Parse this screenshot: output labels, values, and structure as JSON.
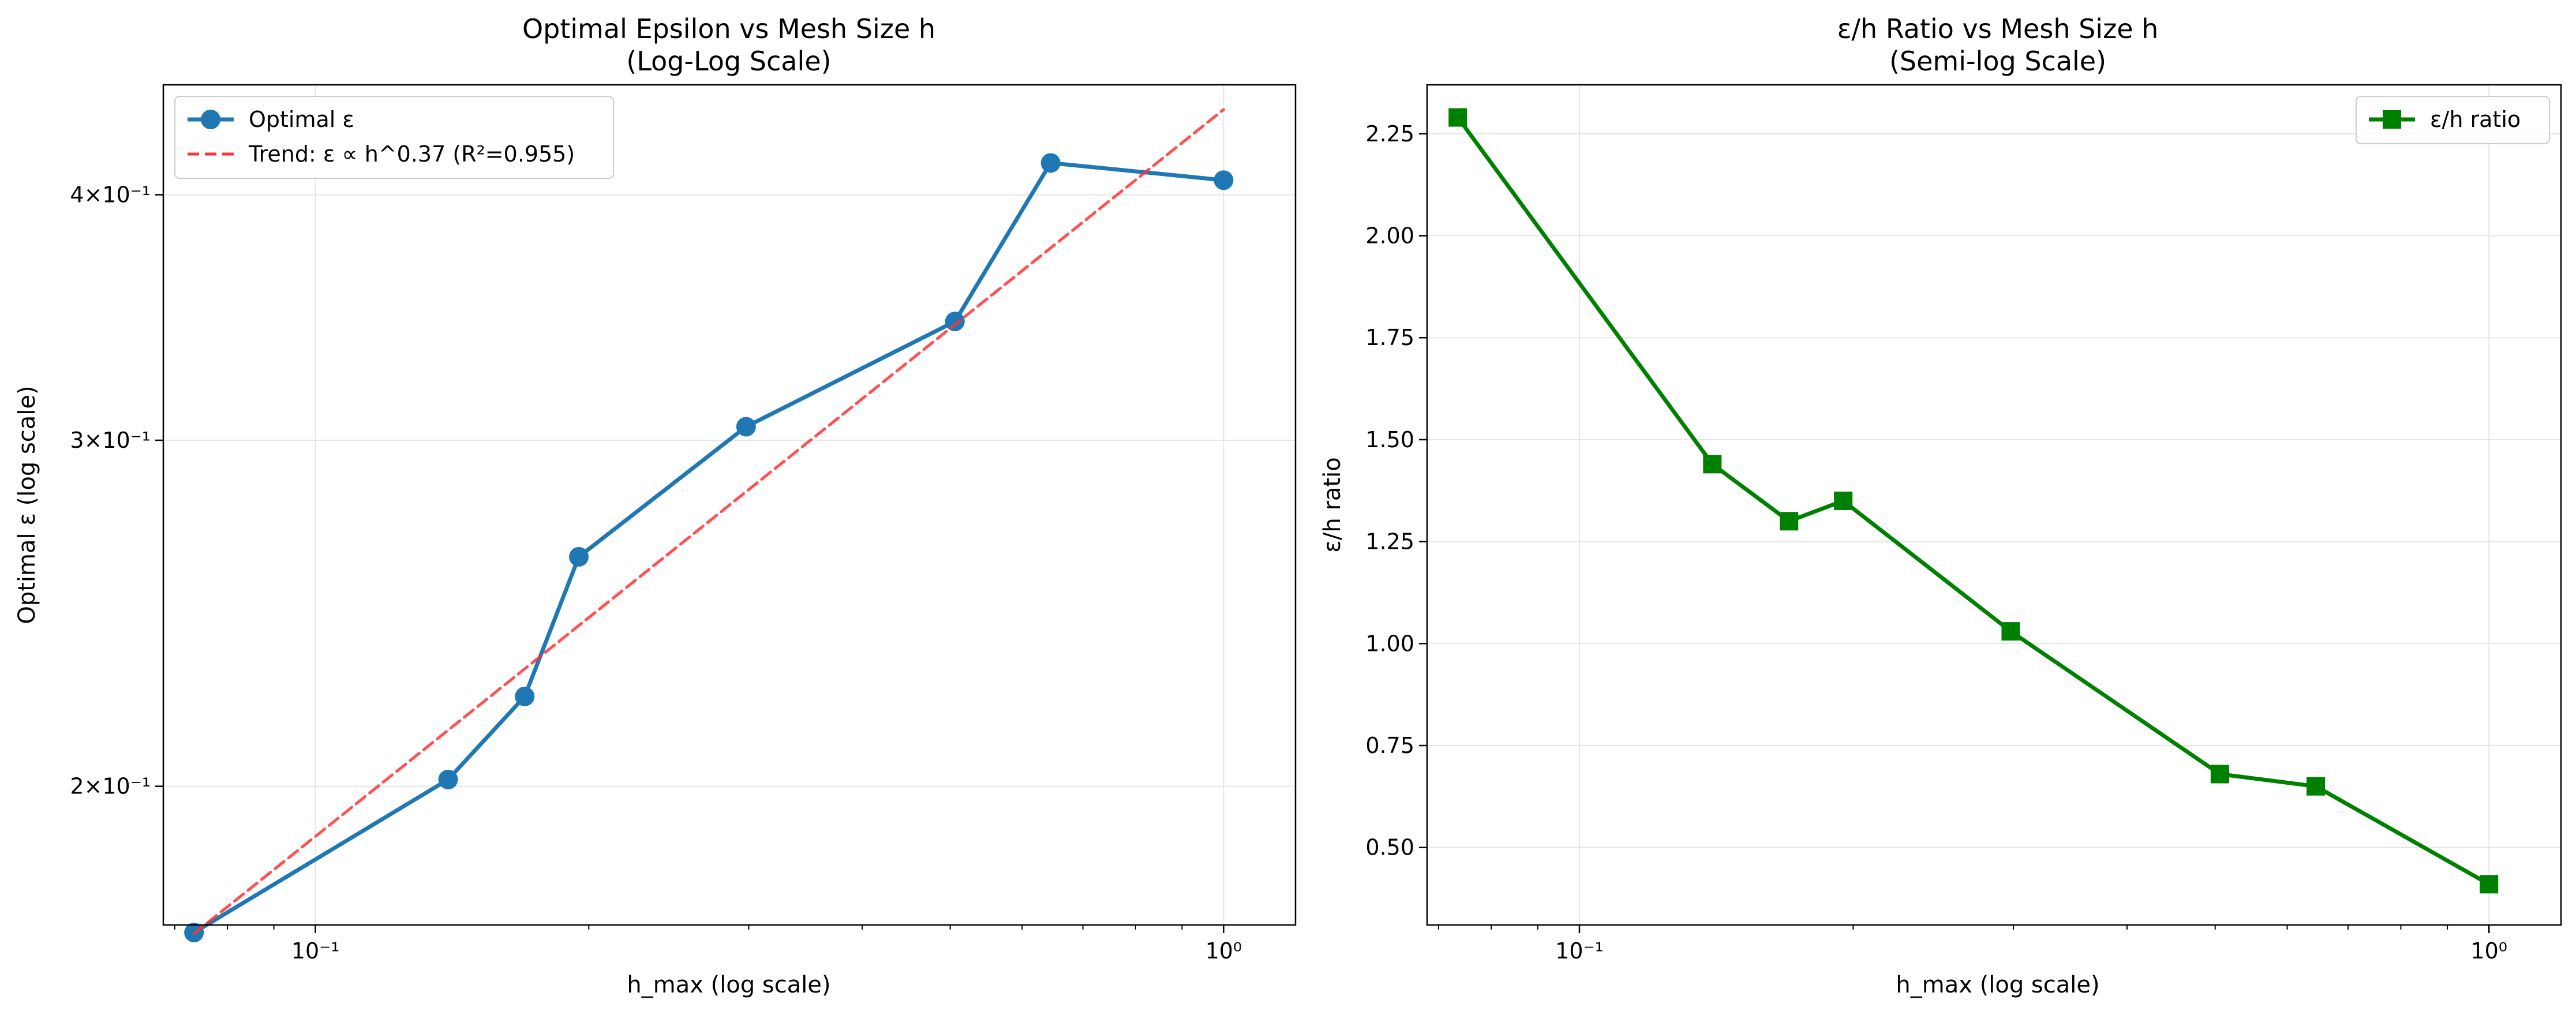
{
  "chart_data": [
    {
      "type": "line",
      "title": "Optimal Epsilon vs Mesh Size h",
      "subtitle": "(Log-Log Scale)",
      "xlabel": "h_max (log scale)",
      "ylabel": "Optimal ε (log scale)",
      "xscale": "log",
      "yscale": "log",
      "xlim": [
        0.068,
        1.2
      ],
      "ylim": [
        0.17,
        0.455
      ],
      "x_ticks": [
        {
          "value": 0.1,
          "label": "10⁻¹"
        },
        {
          "value": 1.0,
          "label": "10⁰"
        }
      ],
      "y_ticks": [
        {
          "value": 0.2,
          "label": "2×10⁻¹"
        },
        {
          "value": 0.3,
          "label": "3×10⁻¹"
        },
        {
          "value": 0.4,
          "label": "4×10⁻¹"
        }
      ],
      "grid": true,
      "legend_position": "top-left",
      "series": [
        {
          "name": "Optimal ε",
          "style": "line-marker",
          "marker": "circle",
          "color": "#1f77b4",
          "x": [
            0.0735,
            0.14,
            0.17,
            0.195,
            0.298,
            0.506,
            0.645,
            1.0
          ],
          "y": [
            0.1685,
            0.2016,
            0.2222,
            0.2617,
            0.3048,
            0.3448,
            0.4152,
            0.4069
          ]
        },
        {
          "name": "Trend: ε ∝ h^0.37 (R²=0.955)",
          "style": "dashed",
          "color": "#ff3333",
          "x": [
            0.0735,
            1.0
          ],
          "y": [
            0.1683,
            0.442
          ]
        }
      ]
    },
    {
      "type": "line",
      "title": "ε/h Ratio vs Mesh Size h",
      "subtitle": "(Semi-log Scale)",
      "xlabel": "h_max (log scale)",
      "ylabel": "ε/h ratio",
      "xscale": "log",
      "yscale": "linear",
      "xlim": [
        0.068,
        1.2
      ],
      "ylim": [
        0.31,
        2.37
      ],
      "x_ticks": [
        {
          "value": 0.1,
          "label": "10⁻¹"
        },
        {
          "value": 1.0,
          "label": "10⁰"
        }
      ],
      "y_ticks": [
        {
          "value": 0.5,
          "label": "0.50"
        },
        {
          "value": 0.75,
          "label": "0.75"
        },
        {
          "value": 1.0,
          "label": "1.00"
        },
        {
          "value": 1.25,
          "label": "1.25"
        },
        {
          "value": 1.5,
          "label": "1.50"
        },
        {
          "value": 1.75,
          "label": "1.75"
        },
        {
          "value": 2.0,
          "label": "2.00"
        },
        {
          "value": 2.25,
          "label": "2.25"
        }
      ],
      "grid": true,
      "legend_position": "top-right",
      "series": [
        {
          "name": "ε/h ratio",
          "style": "line-marker",
          "marker": "square",
          "color": "#008000",
          "x": [
            0.0735,
            0.14,
            0.17,
            0.195,
            0.298,
            0.506,
            0.645,
            1.0
          ],
          "y": [
            2.29,
            1.44,
            1.3,
            1.35,
            1.03,
            0.68,
            0.65,
            0.41
          ]
        }
      ]
    }
  ]
}
